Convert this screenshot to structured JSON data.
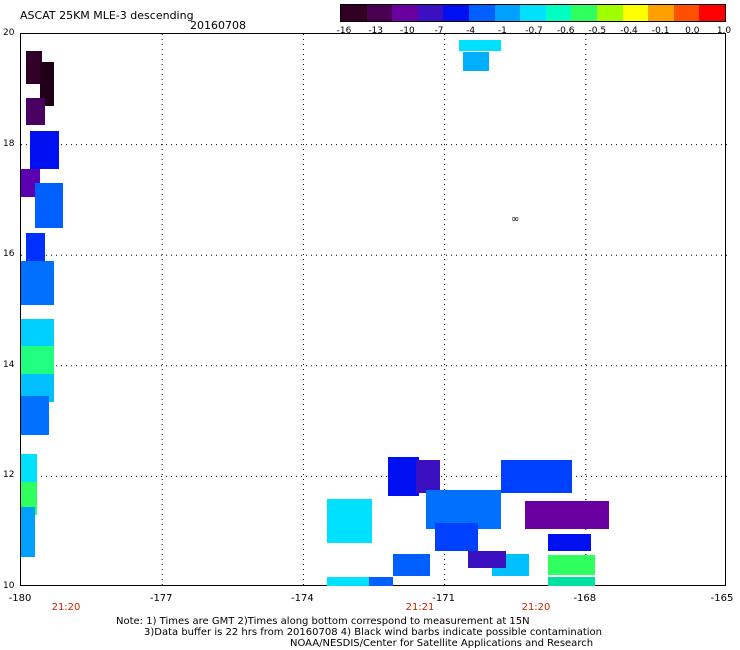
{
  "title": "ASCAT 25KM MLE-3 descending",
  "date": "20160708",
  "colorbar": {
    "colors": [
      "#300020",
      "#4a0050",
      "#6a00a0",
      "#3a10c0",
      "#0010f0",
      "#0060ff",
      "#00a0ff",
      "#00e0ff",
      "#00ffc0",
      "#30ff60",
      "#a0ff00",
      "#ffff00",
      "#ffa000",
      "#ff5000",
      "#ff0000"
    ],
    "ticks": [
      "-16",
      "-13",
      "-10",
      "-7",
      "-4",
      "-1",
      "-0.7",
      "-0.6",
      "-0.5",
      "-0.4",
      "-0.1",
      "0.0",
      "1.0"
    ]
  },
  "y_labels": [
    "20",
    "18",
    "16",
    "14",
    "12",
    "10"
  ],
  "x_labels": [
    "-180",
    "-177",
    "-174",
    "-171",
    "-168",
    "-165"
  ],
  "times": [
    "21:20",
    "21:21",
    "21:20"
  ],
  "notes": {
    "line1": "Note: 1) Times are GMT 2)Times along bottom correspond to measurement at 15N",
    "line2": "3)Data buffer is 22 hrs from 20160708 4) Black wind barbs indicate possible contamination",
    "line3": "NOAA/NESDIS/Center for Satellite Applications and Research"
  },
  "marker": "∞",
  "swaths": [
    {
      "lon": -179.9,
      "lat": 19.4,
      "w": 0.35,
      "h": 0.6,
      "color": "#300028"
    },
    {
      "lon": -179.6,
      "lat": 19.1,
      "w": 0.3,
      "h": 0.8,
      "color": "#200018"
    },
    {
      "lon": -179.9,
      "lat": 18.6,
      "w": 0.4,
      "h": 0.5,
      "color": "#4a0060"
    },
    {
      "lon": -179.8,
      "lat": 17.9,
      "w": 0.6,
      "h": 0.7,
      "color": "#0010f0"
    },
    {
      "lon": -180.0,
      "lat": 17.3,
      "w": 0.4,
      "h": 0.5,
      "color": "#5a00b0"
    },
    {
      "lon": -179.7,
      "lat": 16.9,
      "w": 0.6,
      "h": 0.8,
      "color": "#0060ff"
    },
    {
      "lon": -179.9,
      "lat": 16.1,
      "w": 0.4,
      "h": 0.6,
      "color": "#0030ff"
    },
    {
      "lon": -180.0,
      "lat": 15.5,
      "w": 0.7,
      "h": 0.8,
      "color": "#0070ff"
    },
    {
      "lon": -180.0,
      "lat": 14.6,
      "w": 0.7,
      "h": 0.5,
      "color": "#00d0ff"
    },
    {
      "lon": -180.0,
      "lat": 14.1,
      "w": 0.7,
      "h": 0.5,
      "color": "#20ff80"
    },
    {
      "lon": -180.0,
      "lat": 13.6,
      "w": 0.7,
      "h": 0.5,
      "color": "#00c0ff"
    },
    {
      "lon": -180.0,
      "lat": 13.1,
      "w": 0.6,
      "h": 0.7,
      "color": "#0070ff"
    },
    {
      "lon": -180.0,
      "lat": 12.1,
      "w": 0.35,
      "h": 0.6,
      "color": "#00e0ff"
    },
    {
      "lon": -180.0,
      "lat": 11.6,
      "w": 0.35,
      "h": 0.6,
      "color": "#30ff60"
    },
    {
      "lon": -180.0,
      "lat": 11.0,
      "w": 0.3,
      "h": 0.9,
      "color": "#00a0ff"
    },
    {
      "lon": -170.7,
      "lat": 19.8,
      "w": 0.9,
      "h": 0.2,
      "color": "#00e0ff"
    },
    {
      "lon": -170.6,
      "lat": 19.5,
      "w": 0.55,
      "h": 0.35,
      "color": "#00b0ff"
    },
    {
      "lon": -172.2,
      "lat": 12.0,
      "w": 0.65,
      "h": 0.7,
      "color": "#0010f0"
    },
    {
      "lon": -171.6,
      "lat": 12.0,
      "w": 0.5,
      "h": 0.6,
      "color": "#3a10c0"
    },
    {
      "lon": -171.4,
      "lat": 11.4,
      "w": 1.6,
      "h": 0.7,
      "color": "#0070ff"
    },
    {
      "lon": -171.2,
      "lat": 10.9,
      "w": 0.9,
      "h": 0.5,
      "color": "#0040ff"
    },
    {
      "lon": -172.1,
      "lat": 10.4,
      "w": 0.8,
      "h": 0.4,
      "color": "#0060ff"
    },
    {
      "lon": -170.0,
      "lat": 10.4,
      "w": 0.8,
      "h": 0.4,
      "color": "#00c0ff"
    },
    {
      "lon": -173.5,
      "lat": 11.2,
      "w": 0.95,
      "h": 0.8,
      "color": "#00e0ff"
    },
    {
      "lon": -173.5,
      "lat": 10.1,
      "w": 1.0,
      "h": 0.15,
      "color": "#00e0ff"
    },
    {
      "lon": -172.6,
      "lat": 10.1,
      "w": 0.5,
      "h": 0.15,
      "color": "#0060ff"
    },
    {
      "lon": -170.5,
      "lat": 10.5,
      "w": 0.8,
      "h": 0.3,
      "color": "#3a10c0"
    },
    {
      "lon": -169.8,
      "lat": 12.0,
      "w": 1.5,
      "h": 0.6,
      "color": "#0040ff"
    },
    {
      "lon": -169.3,
      "lat": 11.3,
      "w": 1.8,
      "h": 0.5,
      "color": "#6a00a0"
    },
    {
      "lon": -168.8,
      "lat": 10.8,
      "w": 0.9,
      "h": 0.3,
      "color": "#0010f0"
    },
    {
      "lon": -168.8,
      "lat": 10.4,
      "w": 1.0,
      "h": 0.35,
      "color": "#30ff60"
    },
    {
      "lon": -168.8,
      "lat": 10.1,
      "w": 1.0,
      "h": 0.15,
      "color": "#00e0a0"
    }
  ]
}
